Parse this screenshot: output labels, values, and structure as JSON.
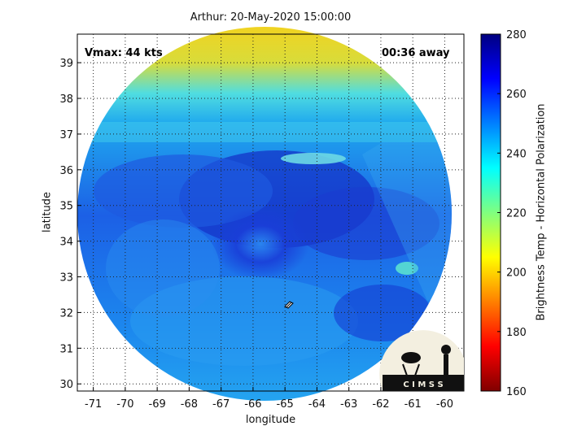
{
  "title": "Arthur: 20-May-2020 15:00:00",
  "vmax_text": "Vmax: 44 kts",
  "time_text": "00:36 away",
  "logo_text": "C I M S S",
  "chart_data": {
    "type": "heatmap",
    "title": "Arthur: 20-May-2020 15:00:00",
    "xlabel": "longitude",
    "ylabel": "latitude",
    "xlim": [
      -71.5,
      -59.4
    ],
    "ylim": [
      29.8,
      39.8
    ],
    "xticks": [
      -71,
      -70,
      -69,
      -68,
      -67,
      -66,
      -65,
      -64,
      -63,
      -62,
      -61,
      -60
    ],
    "yticks": [
      30,
      31,
      32,
      33,
      34,
      35,
      36,
      37,
      38,
      39
    ],
    "grid": true,
    "storm_center": {
      "lon": -65.2,
      "lat": 32.3
    },
    "colorbar": {
      "label": "Brightness Temp - Horizontal Polarization",
      "range": [
        160,
        280
      ],
      "ticks": [
        160,
        180,
        200,
        220,
        240,
        260,
        280
      ],
      "colormap": "jet"
    },
    "description_regions": [
      {
        "region": "north",
        "value_approx": 205
      },
      {
        "region": "center",
        "value_approx": 262
      },
      {
        "region": "south",
        "value_approx": 242
      }
    ]
  }
}
